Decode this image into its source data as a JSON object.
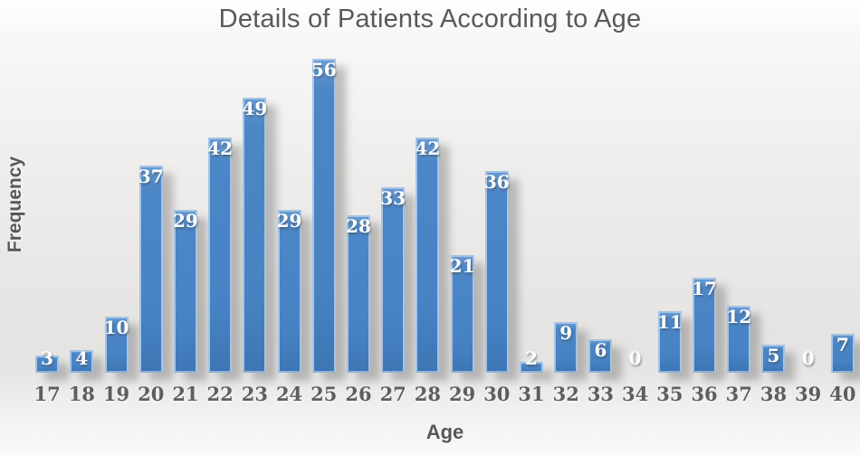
{
  "chart_data": {
    "type": "bar",
    "title": "Details of Patients According to Age",
    "xlabel": "Age",
    "ylabel": "Frequency",
    "categories": [
      17,
      18,
      19,
      20,
      21,
      22,
      23,
      24,
      25,
      26,
      27,
      28,
      29,
      30,
      31,
      32,
      33,
      34,
      35,
      36,
      37,
      38,
      39,
      40
    ],
    "values": [
      3,
      4,
      10,
      37,
      29,
      42,
      49,
      29,
      56,
      28,
      33,
      42,
      21,
      36,
      2,
      9,
      6,
      0,
      11,
      17,
      12,
      5,
      0,
      7
    ],
    "ylim": [
      0,
      60
    ],
    "grid": false,
    "legend": "none",
    "data_labels": "inside-end",
    "colors": {
      "bar_fill": "#4783c4",
      "bar_border": "#a6c3e3",
      "value_label": "#ffffff",
      "axis_text": "#5d5e60",
      "title_text": "#595959"
    }
  }
}
